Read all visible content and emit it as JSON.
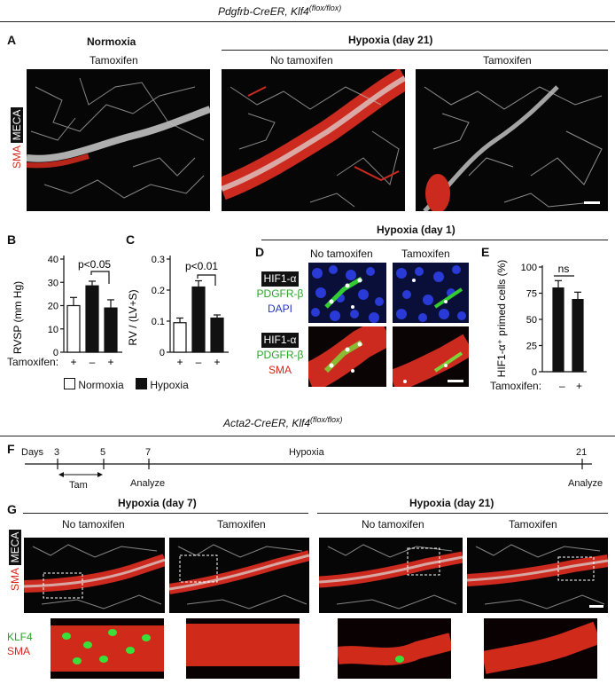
{
  "top_title": "Pdgfrb-CreER, Klf4(flox/flox)",
  "top_title_main": "Pdgfrb-CreER, Klf4",
  "top_title_sup": "(flox/flox)",
  "panel_a": {
    "letter": "A",
    "normoxia_header": "Normoxia",
    "hypoxia_header": "Hypoxia (day 21)",
    "col_labels": [
      "Tamoxifen",
      "No tamoxifen",
      "Tamoxifen"
    ],
    "side_meca": "MECA",
    "side_sma": "SMA"
  },
  "panel_b": {
    "letter": "B",
    "ylabel": "RVSP (mm Hg)",
    "yticks": [
      "0",
      "10",
      "20",
      "30",
      "40"
    ],
    "pvalue": "p<0.05",
    "tamoxifen_label": "Tamoxifen:",
    "signs": [
      "+",
      "–",
      "+"
    ]
  },
  "panel_c": {
    "letter": "C",
    "ylabel": "RV / (LV+S)",
    "yticks": [
      "0",
      "0.1",
      "0.2",
      "0.3"
    ],
    "pvalue": "p<0.01",
    "signs": [
      "+",
      "–",
      "+"
    ]
  },
  "legend": {
    "normoxia": "Normoxia",
    "hypoxia": "Hypoxia"
  },
  "panel_d": {
    "letter": "D",
    "header": "Hypoxia (day 1)",
    "col_labels": [
      "No tamoxifen",
      "Tamoxifen"
    ],
    "row1": [
      "HIF1-α",
      "PDGFR-β",
      "DAPI"
    ],
    "row2": [
      "HIF1-α",
      "PDGFR-β",
      "SMA"
    ]
  },
  "panel_e": {
    "letter": "E",
    "ylabel": "HIF1-α⁺ primed cells (%)",
    "yticks": [
      "0",
      "25",
      "50",
      "75",
      "100"
    ],
    "ns": "ns",
    "tamoxifen_label": "Tamoxifen:",
    "signs": [
      "–",
      "+"
    ]
  },
  "mid_title_main": "Acta2-CreER, Klf4",
  "mid_title_sup": "(flox/flox)",
  "panel_f": {
    "letter": "F",
    "days_label": "Days",
    "ticks": [
      "3",
      "5",
      "7",
      "21"
    ],
    "hypoxia": "Hypoxia",
    "tam": "Tam",
    "analyze1": "Analyze",
    "analyze2": "Analyze"
  },
  "panel_g": {
    "letter": "G",
    "hyp7": "Hypoxia (day 7)",
    "hyp21": "Hypoxia (day 21)",
    "col_labels": [
      "No tamoxifen",
      "Tamoxifen",
      "No tamoxifen",
      "Tamoxifen"
    ],
    "side_meca": "MECA",
    "side_sma": "SMA",
    "inset_klf4": "KLF4",
    "inset_sma": "SMA"
  },
  "chart_data": [
    {
      "type": "bar",
      "title": "",
      "ylabel": "RVSP (mm Hg)",
      "ylim": [
        0,
        40
      ],
      "categories": [
        "Normoxia Tamoxifen +",
        "Hypoxia Tamoxifen –",
        "Hypoxia Tamoxifen +"
      ],
      "values": [
        20,
        28.5,
        19
      ],
      "errors": [
        3.5,
        2,
        3.5
      ],
      "annotation": "p<0.05"
    },
    {
      "type": "bar",
      "title": "",
      "ylabel": "RV / (LV+S)",
      "ylim": [
        0,
        0.3
      ],
      "categories": [
        "Normoxia Tamoxifen +",
        "Hypoxia Tamoxifen –",
        "Hypoxia Tamoxifen +"
      ],
      "values": [
        0.095,
        0.21,
        0.11
      ],
      "errors": [
        0.015,
        0.02,
        0.01
      ],
      "annotation": "p<0.01"
    },
    {
      "type": "bar",
      "title": "",
      "ylabel": "HIF1-α⁺ primed cells (%)",
      "ylim": [
        0,
        100
      ],
      "categories": [
        "Tamoxifen –",
        "Tamoxifen +"
      ],
      "values": [
        80,
        69
      ],
      "errors": [
        7,
        7
      ],
      "annotation": "ns"
    }
  ]
}
